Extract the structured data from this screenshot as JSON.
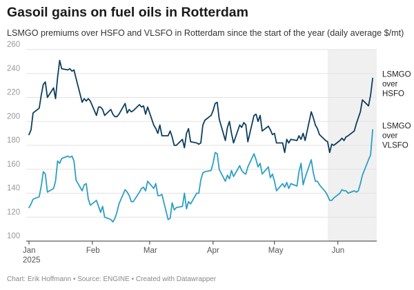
{
  "chart_data": {
    "type": "line",
    "title": "Gasoil gains on fuel oils in Rotterdam",
    "subtitle": "LSMGO premiums over HSFO and VLSFO in Rotterdam since the start of the year (daily average $/mt)",
    "source": "Chart: Erik Hoffmann • Source: ENGINE • Created with Datawrapper",
    "ylim": [
      100,
      260
    ],
    "yticks": [
      "100",
      "120",
      "140",
      "160",
      "180",
      "200",
      "220",
      "240",
      "260"
    ],
    "xlim": [
      "2025-01-01",
      "2025-06-20"
    ],
    "xticks": [
      {
        "date": "2025-01-01",
        "label": "Jan",
        "sublabel": "2025"
      },
      {
        "date": "2025-02-01",
        "label": "Feb",
        "sublabel": ""
      },
      {
        "date": "2025-03-01",
        "label": "Mar",
        "sublabel": ""
      },
      {
        "date": "2025-04-01",
        "label": "Apr",
        "sublabel": ""
      },
      {
        "date": "2025-05-01",
        "label": "May",
        "sublabel": ""
      },
      {
        "date": "2025-06-01",
        "label": "Jun",
        "sublabel": ""
      }
    ],
    "highlight_range": [
      "2025-05-27",
      "2025-06-20"
    ],
    "grid": true,
    "series": [
      {
        "name_lines": [
          "LSMGO",
          "over",
          "HSFO"
        ],
        "color": "#0b3d5c",
        "points": [
          [
            "2025-01-01",
            189
          ],
          [
            "2025-01-02",
            193
          ],
          [
            "2025-01-03",
            207
          ],
          [
            "2025-01-06",
            211
          ],
          [
            "2025-01-07",
            222
          ],
          [
            "2025-01-08",
            231
          ],
          [
            "2025-01-09",
            233
          ],
          [
            "2025-01-10",
            220
          ],
          [
            "2025-01-13",
            228
          ],
          [
            "2025-01-14",
            219
          ],
          [
            "2025-01-15",
            237
          ],
          [
            "2025-01-16",
            251
          ],
          [
            "2025-01-17",
            244
          ],
          [
            "2025-01-20",
            243
          ],
          [
            "2025-01-21",
            244
          ],
          [
            "2025-01-22",
            242
          ],
          [
            "2025-01-23",
            243
          ],
          [
            "2025-01-24",
            236
          ],
          [
            "2025-01-27",
            216
          ],
          [
            "2025-01-28",
            219
          ],
          [
            "2025-01-29",
            217
          ],
          [
            "2025-01-30",
            219
          ],
          [
            "2025-01-31",
            217
          ],
          [
            "2025-02-03",
            205
          ],
          [
            "2025-02-04",
            212
          ],
          [
            "2025-02-05",
            212
          ],
          [
            "2025-02-06",
            210
          ],
          [
            "2025-02-07",
            205
          ],
          [
            "2025-02-10",
            210
          ],
          [
            "2025-02-11",
            206
          ],
          [
            "2025-02-12",
            204
          ],
          [
            "2025-02-13",
            204
          ],
          [
            "2025-02-14",
            206
          ],
          [
            "2025-02-17",
            215
          ],
          [
            "2025-02-18",
            207
          ],
          [
            "2025-02-19",
            210
          ],
          [
            "2025-02-20",
            208
          ],
          [
            "2025-02-21",
            209
          ],
          [
            "2025-02-24",
            214
          ],
          [
            "2025-02-25",
            212
          ],
          [
            "2025-02-26",
            213
          ],
          [
            "2025-02-27",
            206
          ],
          [
            "2025-02-28",
            212
          ],
          [
            "2025-03-03",
            197
          ],
          [
            "2025-03-04",
            194
          ],
          [
            "2025-03-05",
            190
          ],
          [
            "2025-03-06",
            197
          ],
          [
            "2025-03-07",
            188
          ],
          [
            "2025-03-10",
            188
          ],
          [
            "2025-03-11",
            192
          ],
          [
            "2025-03-12",
            187
          ],
          [
            "2025-03-13",
            180
          ],
          [
            "2025-03-14",
            180
          ],
          [
            "2025-03-17",
            185
          ],
          [
            "2025-03-18",
            178
          ],
          [
            "2025-03-19",
            190
          ],
          [
            "2025-03-20",
            194
          ],
          [
            "2025-03-21",
            183
          ],
          [
            "2025-03-24",
            182
          ],
          [
            "2025-03-25",
            181
          ],
          [
            "2025-03-26",
            182
          ],
          [
            "2025-03-27",
            197
          ],
          [
            "2025-03-28",
            201
          ],
          [
            "2025-03-31",
            205
          ],
          [
            "2025-04-01",
            209
          ],
          [
            "2025-04-02",
            215
          ],
          [
            "2025-04-03",
            216
          ],
          [
            "2025-04-04",
            202
          ],
          [
            "2025-04-07",
            184
          ],
          [
            "2025-04-08",
            195
          ],
          [
            "2025-04-09",
            200
          ],
          [
            "2025-04-10",
            190
          ],
          [
            "2025-04-11",
            182
          ],
          [
            "2025-04-14",
            197
          ],
          [
            "2025-04-15",
            195
          ],
          [
            "2025-04-16",
            199
          ],
          [
            "2025-04-17",
            197
          ],
          [
            "2025-04-18",
            183
          ],
          [
            "2025-04-21",
            205
          ],
          [
            "2025-04-22",
            206
          ],
          [
            "2025-04-23",
            200
          ],
          [
            "2025-04-24",
            205
          ],
          [
            "2025-04-25",
            192
          ],
          [
            "2025-04-28",
            196
          ],
          [
            "2025-04-29",
            193
          ],
          [
            "2025-04-30",
            189
          ],
          [
            "2025-05-01",
            190
          ],
          [
            "2025-05-02",
            182
          ],
          [
            "2025-05-05",
            182
          ],
          [
            "2025-05-06",
            174
          ],
          [
            "2025-05-07",
            185
          ],
          [
            "2025-05-08",
            182
          ],
          [
            "2025-05-09",
            185
          ],
          [
            "2025-05-12",
            184
          ],
          [
            "2025-05-13",
            188
          ],
          [
            "2025-05-14",
            185
          ],
          [
            "2025-05-15",
            190
          ],
          [
            "2025-05-16",
            184
          ],
          [
            "2025-05-19",
            208
          ],
          [
            "2025-05-20",
            203
          ],
          [
            "2025-05-21",
            197
          ],
          [
            "2025-05-22",
            194
          ],
          [
            "2025-05-23",
            189
          ],
          [
            "2025-05-26",
            184
          ],
          [
            "2025-05-27",
            183
          ],
          [
            "2025-05-28",
            174
          ],
          [
            "2025-05-29",
            181
          ],
          [
            "2025-05-30",
            180
          ],
          [
            "2025-06-02",
            184
          ],
          [
            "2025-06-03",
            186
          ],
          [
            "2025-06-04",
            184
          ],
          [
            "2025-06-05",
            187
          ],
          [
            "2025-06-06",
            188
          ],
          [
            "2025-06-09",
            192
          ],
          [
            "2025-06-10",
            198
          ],
          [
            "2025-06-11",
            203
          ],
          [
            "2025-06-12",
            208
          ],
          [
            "2025-06-13",
            218
          ],
          [
            "2025-06-16",
            213
          ],
          [
            "2025-06-17",
            222
          ],
          [
            "2025-06-18",
            236
          ]
        ]
      },
      {
        "name_lines": [
          "LSMGO",
          "over",
          "VLSFO"
        ],
        "color": "#2a9fc4",
        "points": [
          [
            "2025-01-01",
            128
          ],
          [
            "2025-01-02",
            131
          ],
          [
            "2025-01-03",
            135
          ],
          [
            "2025-01-06",
            137
          ],
          [
            "2025-01-07",
            146
          ],
          [
            "2025-01-08",
            158
          ],
          [
            "2025-01-09",
            156
          ],
          [
            "2025-01-10",
            141
          ],
          [
            "2025-01-13",
            144
          ],
          [
            "2025-01-14",
            150
          ],
          [
            "2025-01-15",
            167
          ],
          [
            "2025-01-16",
            165
          ],
          [
            "2025-01-17",
            169
          ],
          [
            "2025-01-20",
            171
          ],
          [
            "2025-01-21",
            170
          ],
          [
            "2025-01-22",
            171
          ],
          [
            "2025-01-23",
            167
          ],
          [
            "2025-01-24",
            151
          ],
          [
            "2025-01-27",
            142
          ],
          [
            "2025-01-28",
            147
          ],
          [
            "2025-01-29",
            148
          ],
          [
            "2025-01-30",
            135
          ],
          [
            "2025-01-31",
            130
          ],
          [
            "2025-02-03",
            134
          ],
          [
            "2025-02-04",
            129
          ],
          [
            "2025-02-05",
            124
          ],
          [
            "2025-02-06",
            129
          ],
          [
            "2025-02-07",
            120
          ],
          [
            "2025-02-10",
            118
          ],
          [
            "2025-02-11",
            116
          ],
          [
            "2025-02-12",
            119
          ],
          [
            "2025-02-13",
            124
          ],
          [
            "2025-02-14",
            131
          ],
          [
            "2025-02-17",
            143
          ],
          [
            "2025-02-18",
            141
          ],
          [
            "2025-02-19",
            138
          ],
          [
            "2025-02-20",
            133
          ],
          [
            "2025-02-21",
            133
          ],
          [
            "2025-02-24",
            141
          ],
          [
            "2025-02-25",
            144
          ],
          [
            "2025-02-26",
            145
          ],
          [
            "2025-02-27",
            142
          ],
          [
            "2025-02-28",
            150
          ],
          [
            "2025-03-03",
            144
          ],
          [
            "2025-03-04",
            148
          ],
          [
            "2025-03-05",
            138
          ],
          [
            "2025-03-06",
            138
          ],
          [
            "2025-03-07",
            139
          ],
          [
            "2025-03-10",
            118
          ],
          [
            "2025-03-11",
            119
          ],
          [
            "2025-03-12",
            132
          ],
          [
            "2025-03-13",
            126
          ],
          [
            "2025-03-14",
            128
          ],
          [
            "2025-03-17",
            129
          ],
          [
            "2025-03-18",
            140
          ],
          [
            "2025-03-19",
            127
          ],
          [
            "2025-03-20",
            133
          ],
          [
            "2025-03-21",
            131
          ],
          [
            "2025-03-24",
            140
          ],
          [
            "2025-03-25",
            140
          ],
          [
            "2025-03-26",
            151
          ],
          [
            "2025-03-27",
            157
          ],
          [
            "2025-03-28",
            158
          ],
          [
            "2025-03-31",
            159
          ],
          [
            "2025-04-01",
            165
          ],
          [
            "2025-04-02",
            174
          ],
          [
            "2025-04-03",
            173
          ],
          [
            "2025-04-04",
            160
          ],
          [
            "2025-04-07",
            150
          ],
          [
            "2025-04-08",
            155
          ],
          [
            "2025-04-09",
            152
          ],
          [
            "2025-04-10",
            159
          ],
          [
            "2025-04-11",
            154
          ],
          [
            "2025-04-14",
            163
          ],
          [
            "2025-04-15",
            159
          ],
          [
            "2025-04-16",
            157
          ],
          [
            "2025-04-17",
            156
          ],
          [
            "2025-04-18",
            162
          ],
          [
            "2025-04-21",
            173
          ],
          [
            "2025-04-22",
            168
          ],
          [
            "2025-04-23",
            162
          ],
          [
            "2025-04-24",
            165
          ],
          [
            "2025-04-25",
            156
          ],
          [
            "2025-04-28",
            162
          ],
          [
            "2025-04-29",
            153
          ],
          [
            "2025-04-30",
            156
          ],
          [
            "2025-05-01",
            150
          ],
          [
            "2025-05-02",
            142
          ],
          [
            "2025-05-05",
            148
          ],
          [
            "2025-05-06",
            145
          ],
          [
            "2025-05-07",
            149
          ],
          [
            "2025-05-08",
            144
          ],
          [
            "2025-05-09",
            148
          ],
          [
            "2025-05-12",
            146
          ],
          [
            "2025-05-13",
            158
          ],
          [
            "2025-05-14",
            165
          ],
          [
            "2025-05-15",
            147
          ],
          [
            "2025-05-16",
            153
          ],
          [
            "2025-05-19",
            168
          ],
          [
            "2025-05-20",
            157
          ],
          [
            "2025-05-21",
            150
          ],
          [
            "2025-05-22",
            150
          ],
          [
            "2025-05-23",
            147
          ],
          [
            "2025-05-26",
            141
          ],
          [
            "2025-05-27",
            138
          ],
          [
            "2025-05-28",
            134
          ],
          [
            "2025-05-29",
            134
          ],
          [
            "2025-05-30",
            136
          ],
          [
            "2025-06-02",
            140
          ],
          [
            "2025-06-03",
            143
          ],
          [
            "2025-06-04",
            142
          ],
          [
            "2025-06-05",
            142
          ],
          [
            "2025-06-06",
            140
          ],
          [
            "2025-06-09",
            142
          ],
          [
            "2025-06-10",
            141
          ],
          [
            "2025-06-11",
            142
          ],
          [
            "2025-06-12",
            148
          ],
          [
            "2025-06-13",
            155
          ],
          [
            "2025-06-16",
            168
          ],
          [
            "2025-06-17",
            172
          ],
          [
            "2025-06-18",
            193
          ]
        ]
      }
    ]
  }
}
